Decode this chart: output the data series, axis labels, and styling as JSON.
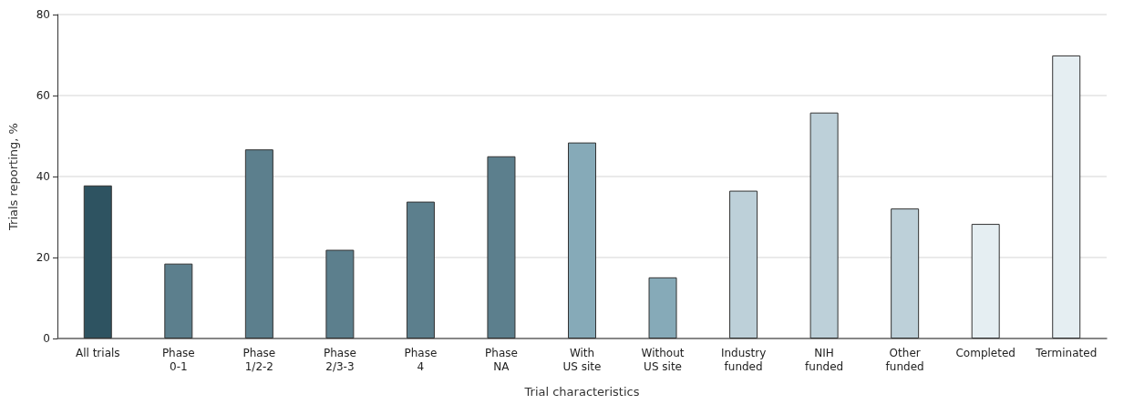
{
  "chart_data": {
    "type": "bar",
    "xlabel": "Trial characteristics",
    "ylabel": "Trials reporting, %",
    "categories": [
      "All trials",
      "Phase\n0-1",
      "Phase\n1/2-2",
      "Phase\n2/3-3",
      "Phase\n4",
      "Phase\nNA",
      "With\nUS site",
      "Without\nUS site",
      "Industry\nfunded",
      "NIH\nfunded",
      "Other\nfunded",
      "Completed",
      "Terminated"
    ],
    "values": [
      37.8,
      18.5,
      46.7,
      21.9,
      33.8,
      45.0,
      48.4,
      15.1,
      36.5,
      55.8,
      32.1,
      28.3,
      69.9
    ],
    "colors": [
      "#2e5361",
      "#5c7f8d",
      "#5c7f8d",
      "#5c7f8d",
      "#5c7f8d",
      "#5c7f8d",
      "#86aab8",
      "#86aab8",
      "#bdd0d9",
      "#bdd0d9",
      "#bdd0d9",
      "#e5eef2",
      "#e5eef2"
    ],
    "ylim": [
      0,
      80
    ],
    "yticks": [
      0,
      20,
      40,
      60,
      80
    ],
    "grid": "y"
  }
}
